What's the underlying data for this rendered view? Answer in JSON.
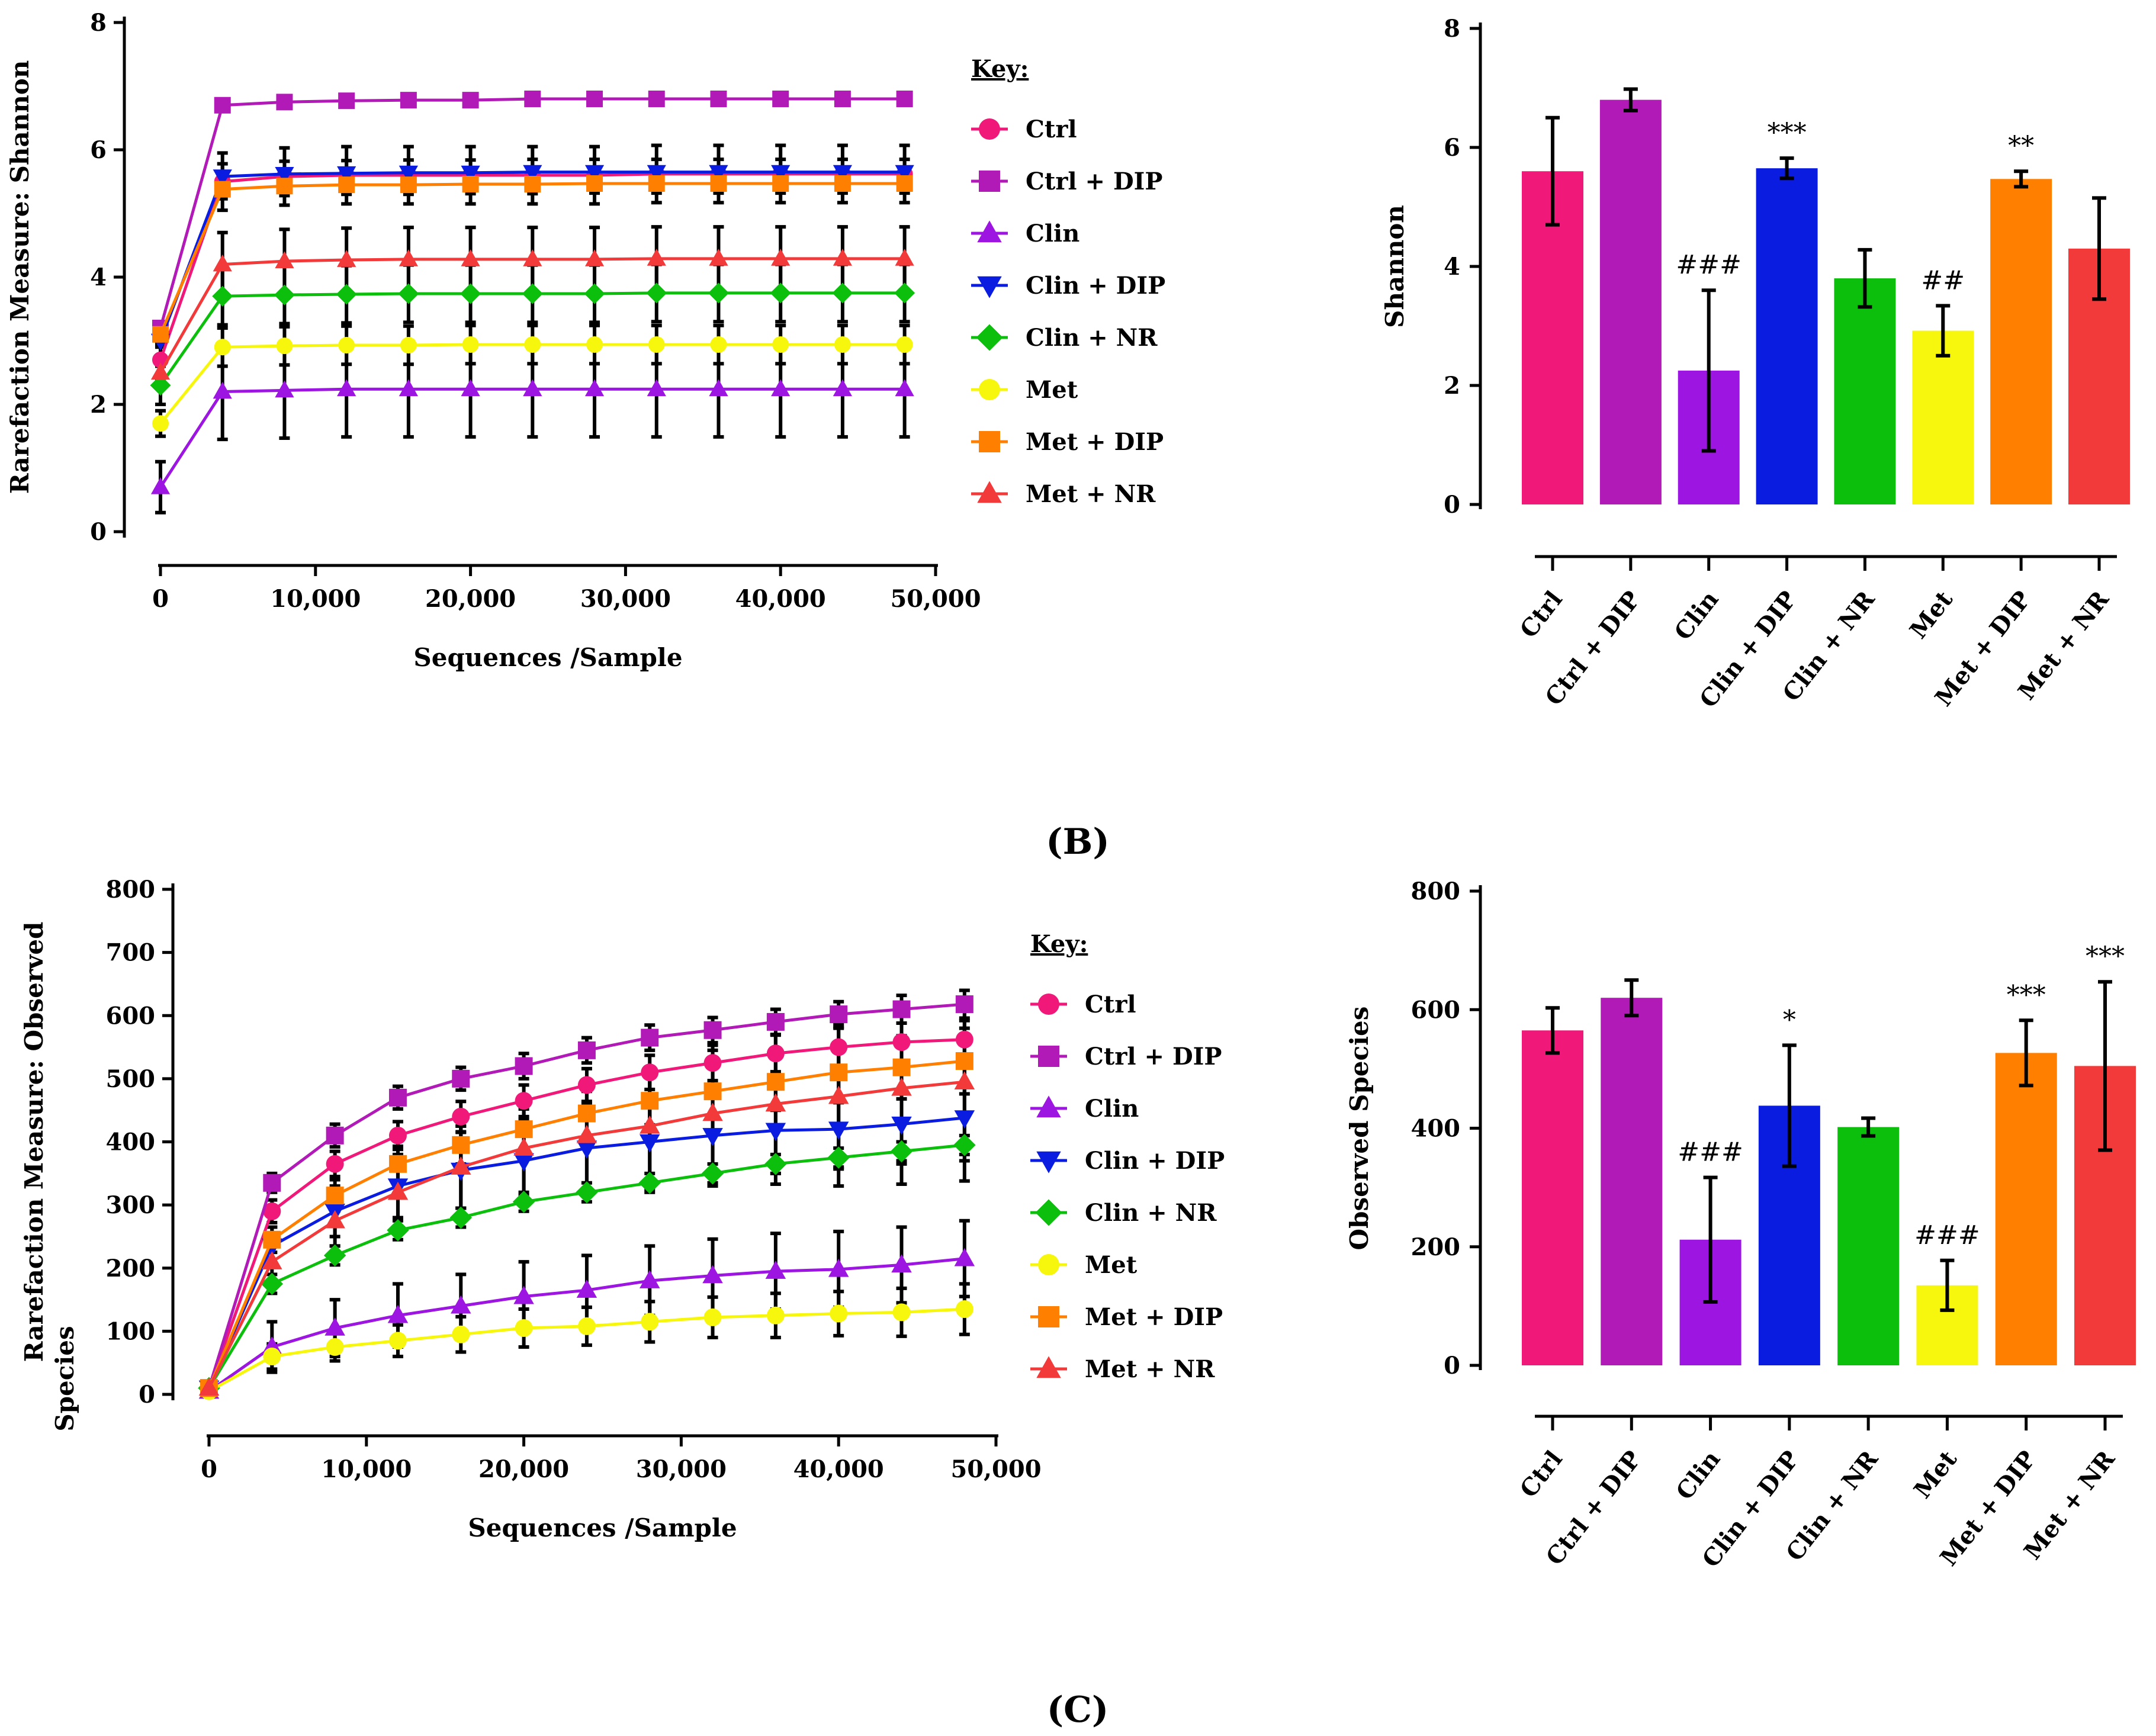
{
  "panels": {
    "B": "(B)",
    "C": "(C)"
  },
  "key_title": "Key:",
  "groups": [
    "Ctrl",
    "Ctrl + DIP",
    "Clin",
    "Clin + DIP",
    "Clin + NR",
    "Met",
    "Met + DIP",
    "Met + NR"
  ],
  "colors": [
    "#f0197a",
    "#b21ab8",
    "#9c15e0",
    "#0a1ce0",
    "#0cbf0c",
    "#f7f70d",
    "#ff7f00",
    "#f23a3a"
  ],
  "markers": [
    "circle",
    "square",
    "triangle-up",
    "triangle-down",
    "diamond",
    "circle",
    "square",
    "triangle-up"
  ],
  "chart_data": [
    {
      "id": "shannon-rarefaction",
      "type": "line",
      "ylabel": "Rarefaction Measure: Shannon",
      "xlabel": "Sequences /Sample",
      "xlim": [
        0,
        50000
      ],
      "ylim": [
        0,
        8
      ],
      "xticks": [
        0,
        10000,
        20000,
        30000,
        40000,
        50000
      ],
      "xtick_labels": [
        "0",
        "10,000",
        "20,000",
        "30,000",
        "40,000",
        "50,000"
      ],
      "yticks": [
        0,
        2,
        4,
        6,
        8
      ],
      "ytick_labels": [
        "0",
        "2",
        "4",
        "6",
        "8"
      ],
      "x": [
        0,
        4000,
        8000,
        12000,
        16000,
        20000,
        24000,
        28000,
        32000,
        36000,
        40000,
        44000,
        48000
      ],
      "series": [
        {
          "name": "Ctrl",
          "values": [
            2.7,
            5.5,
            5.58,
            5.6,
            5.6,
            5.6,
            5.6,
            5.6,
            5.62,
            5.62,
            5.62,
            5.62,
            5.62
          ],
          "errors": [
            0.3,
            0.45,
            0.45,
            0.45,
            0.45,
            0.45,
            0.45,
            0.45,
            0.45,
            0.45,
            0.45,
            0.45,
            0.45
          ]
        },
        {
          "name": "Ctrl + DIP",
          "values": [
            3.2,
            6.7,
            6.75,
            6.77,
            6.78,
            6.78,
            6.8,
            6.8,
            6.8,
            6.8,
            6.8,
            6.8,
            6.8
          ],
          "errors": [
            0.1,
            0.05,
            0.05,
            0.05,
            0.05,
            0.05,
            0.05,
            0.05,
            0.05,
            0.05,
            0.05,
            0.05,
            0.05
          ]
        },
        {
          "name": "Clin",
          "values": [
            0.7,
            2.2,
            2.22,
            2.24,
            2.24,
            2.24,
            2.24,
            2.24,
            2.24,
            2.24,
            2.24,
            2.24,
            2.24
          ],
          "errors": [
            0.4,
            0.75,
            0.75,
            0.75,
            0.75,
            0.75,
            0.75,
            0.75,
            0.75,
            0.75,
            0.75,
            0.75,
            0.75
          ]
        },
        {
          "name": "Clin + DIP",
          "values": [
            3.0,
            5.58,
            5.62,
            5.63,
            5.64,
            5.64,
            5.65,
            5.65,
            5.65,
            5.65,
            5.65,
            5.65,
            5.65
          ],
          "errors": [
            0.1,
            0.2,
            0.2,
            0.2,
            0.2,
            0.2,
            0.2,
            0.2,
            0.2,
            0.2,
            0.2,
            0.2,
            0.2
          ]
        },
        {
          "name": "Clin + NR",
          "values": [
            2.3,
            3.7,
            3.72,
            3.73,
            3.74,
            3.74,
            3.74,
            3.74,
            3.75,
            3.75,
            3.75,
            3.75,
            3.75
          ],
          "errors": [
            0.3,
            0.45,
            0.45,
            0.45,
            0.45,
            0.45,
            0.45,
            0.45,
            0.45,
            0.45,
            0.45,
            0.45,
            0.45
          ]
        },
        {
          "name": "Met",
          "values": [
            1.7,
            2.9,
            2.92,
            2.93,
            2.93,
            2.94,
            2.94,
            2.94,
            2.94,
            2.94,
            2.94,
            2.94,
            2.94
          ],
          "errors": [
            0.2,
            0.3,
            0.3,
            0.3,
            0.3,
            0.3,
            0.3,
            0.3,
            0.3,
            0.3,
            0.3,
            0.3,
            0.3
          ]
        },
        {
          "name": "Met + DIP",
          "values": [
            3.1,
            5.38,
            5.43,
            5.45,
            5.45,
            5.46,
            5.46,
            5.47,
            5.47,
            5.47,
            5.47,
            5.47,
            5.47
          ],
          "errors": [
            0.15,
            0.15,
            0.15,
            0.15,
            0.15,
            0.15,
            0.15,
            0.15,
            0.15,
            0.15,
            0.15,
            0.15,
            0.15
          ]
        },
        {
          "name": "Met + NR",
          "values": [
            2.5,
            4.2,
            4.25,
            4.27,
            4.28,
            4.28,
            4.28,
            4.28,
            4.29,
            4.29,
            4.29,
            4.29,
            4.29
          ],
          "errors": [
            0.5,
            0.5,
            0.5,
            0.5,
            0.5,
            0.5,
            0.5,
            0.5,
            0.5,
            0.5,
            0.5,
            0.5,
            0.5
          ]
        }
      ]
    },
    {
      "id": "shannon-bar",
      "type": "bar",
      "ylabel": "Shannon",
      "xlabel": "",
      "ylim": [
        0,
        8
      ],
      "yticks": [
        0,
        2,
        4,
        6,
        8
      ],
      "ytick_labels": [
        "0",
        "2",
        "4",
        "6",
        "8"
      ],
      "categories": [
        "Ctrl",
        "Ctrl + DIP",
        "Clin",
        "Clin + DIP",
        "Clin + NR",
        "Met",
        "Met + DIP",
        "Met + NR"
      ],
      "values": [
        5.6,
        6.8,
        2.25,
        5.65,
        3.8,
        2.92,
        5.47,
        4.3
      ],
      "errors": [
        0.9,
        0.18,
        1.35,
        0.17,
        0.48,
        0.42,
        0.13,
        0.85
      ],
      "annotations": [
        "",
        "",
        "###",
        "***",
        "",
        "##",
        "**",
        ""
      ]
    },
    {
      "id": "observed-rarefaction",
      "type": "line",
      "ylabel": "Rarefaction Measure: Observed Species",
      "xlabel": "Sequences /Sample",
      "xlim": [
        0,
        50000
      ],
      "ylim": [
        0,
        800
      ],
      "xticks": [
        0,
        10000,
        20000,
        30000,
        40000,
        50000
      ],
      "xtick_labels": [
        "0",
        "10,000",
        "20,000",
        "30,000",
        "40,000",
        "50,000"
      ],
      "yticks": [
        0,
        100,
        200,
        300,
        400,
        500,
        600,
        700,
        800
      ],
      "ytick_labels": [
        "0",
        "100",
        "200",
        "300",
        "400",
        "500",
        "600",
        "700",
        "800"
      ],
      "x": [
        0,
        4000,
        8000,
        12000,
        16000,
        20000,
        24000,
        28000,
        32000,
        36000,
        40000,
        44000,
        48000
      ],
      "series": [
        {
          "name": "Ctrl",
          "values": [
            10,
            290,
            365,
            410,
            440,
            465,
            490,
            510,
            525,
            540,
            550,
            558,
            562
          ],
          "errors": [
            5,
            18,
            20,
            22,
            24,
            25,
            26,
            27,
            28,
            29,
            30,
            30,
            30
          ]
        },
        {
          "name": "Ctrl + DIP",
          "values": [
            10,
            335,
            410,
            470,
            500,
            520,
            545,
            565,
            577,
            590,
            602,
            610,
            618
          ],
          "errors": [
            5,
            15,
            18,
            18,
            18,
            20,
            20,
            20,
            20,
            20,
            20,
            22,
            22
          ]
        },
        {
          "name": "Clin",
          "values": [
            5,
            75,
            105,
            125,
            140,
            155,
            165,
            180,
            188,
            195,
            198,
            205,
            215
          ],
          "errors": [
            5,
            40,
            45,
            50,
            50,
            55,
            55,
            55,
            58,
            60,
            60,
            60,
            60
          ]
        },
        {
          "name": "Clin + DIP",
          "values": [
            10,
            235,
            290,
            330,
            355,
            370,
            390,
            400,
            410,
            418,
            420,
            428,
            438
          ],
          "errors": [
            5,
            30,
            40,
            50,
            60,
            65,
            70,
            75,
            80,
            85,
            90,
            95,
            100
          ]
        },
        {
          "name": "Clin + NR",
          "values": [
            10,
            175,
            220,
            260,
            280,
            305,
            320,
            335,
            350,
            365,
            375,
            385,
            395
          ],
          "errors": [
            5,
            15,
            15,
            15,
            15,
            15,
            15,
            15,
            15,
            15,
            15,
            15,
            15
          ]
        },
        {
          "name": "Met",
          "values": [
            5,
            60,
            75,
            85,
            95,
            105,
            108,
            115,
            122,
            125,
            128,
            130,
            135
          ],
          "errors": [
            5,
            20,
            22,
            25,
            28,
            30,
            30,
            32,
            32,
            35,
            35,
            38,
            40
          ]
        },
        {
          "name": "Met + DIP",
          "values": [
            10,
            245,
            315,
            365,
            395,
            420,
            445,
            465,
            480,
            495,
            510,
            518,
            528
          ],
          "errors": [
            5,
            20,
            25,
            28,
            30,
            32,
            35,
            38,
            40,
            45,
            48,
            50,
            52
          ]
        },
        {
          "name": "Met + NR",
          "values": [
            10,
            210,
            275,
            320,
            360,
            390,
            410,
            425,
            445,
            460,
            472,
            485,
            495
          ],
          "errors": [
            5,
            30,
            40,
            55,
            65,
            75,
            85,
            90,
            100,
            110,
            115,
            120,
            125
          ]
        }
      ]
    },
    {
      "id": "observed-bar",
      "type": "bar",
      "ylabel": "Observed Species",
      "xlabel": "",
      "ylim": [
        0,
        800
      ],
      "yticks": [
        0,
        200,
        400,
        600,
        800
      ],
      "ytick_labels": [
        "0",
        "200",
        "400",
        "600",
        "800"
      ],
      "categories": [
        "Ctrl",
        "Ctrl + DIP",
        "Clin",
        "Clin + DIP",
        "Clin + NR",
        "Met",
        "Met + DIP",
        "Met + NR"
      ],
      "values": [
        565,
        620,
        212,
        438,
        402,
        135,
        527,
        505
      ],
      "errors": [
        38,
        30,
        105,
        102,
        15,
        42,
        55,
        142
      ],
      "annotations": [
        "",
        "",
        "###",
        "*",
        "",
        "###",
        "***",
        "***"
      ]
    }
  ]
}
